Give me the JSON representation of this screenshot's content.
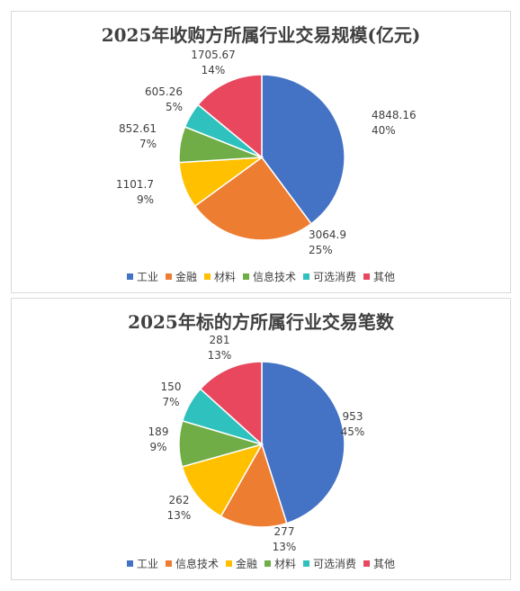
{
  "chart_data": [
    {
      "type": "pie",
      "title": "2025年收购方所属行业交易规模(亿元)",
      "legend_position": "bottom",
      "slices": [
        {
          "name": "工业",
          "value": "4848.16",
          "percent": "40%",
          "color": "#4472C4"
        },
        {
          "name": "金融",
          "value": "3064.9",
          "percent": "25%",
          "color": "#ED7D31"
        },
        {
          "name": "材料",
          "value": "1101.7",
          "percent": "9%",
          "color": "#FFC000"
        },
        {
          "name": "信息技术",
          "value": "852.61",
          "percent": "7%",
          "color": "#70AD47"
        },
        {
          "name": "可选消费",
          "value": "605.26",
          "percent": "5%",
          "color": "#2FC1BD"
        },
        {
          "name": "其他",
          "value": "1705.67",
          "percent": "14%",
          "color": "#E8475E"
        }
      ]
    },
    {
      "type": "pie",
      "title": "2025年标的方所属行业交易笔数",
      "legend_position": "bottom",
      "slices": [
        {
          "name": "工业",
          "value": "953",
          "percent": "45%",
          "color": "#4472C4"
        },
        {
          "name": "信息技术",
          "value": "277",
          "percent": "13%",
          "color": "#ED7D31"
        },
        {
          "name": "金融",
          "value": "262",
          "percent": "13%",
          "color": "#FFC000"
        },
        {
          "name": "材料",
          "value": "189",
          "percent": "9%",
          "color": "#70AD47"
        },
        {
          "name": "可选消费",
          "value": "150",
          "percent": "7%",
          "color": "#2FC1BD"
        },
        {
          "name": "其他",
          "value": "281",
          "percent": "13%",
          "color": "#E8475E"
        }
      ]
    }
  ]
}
